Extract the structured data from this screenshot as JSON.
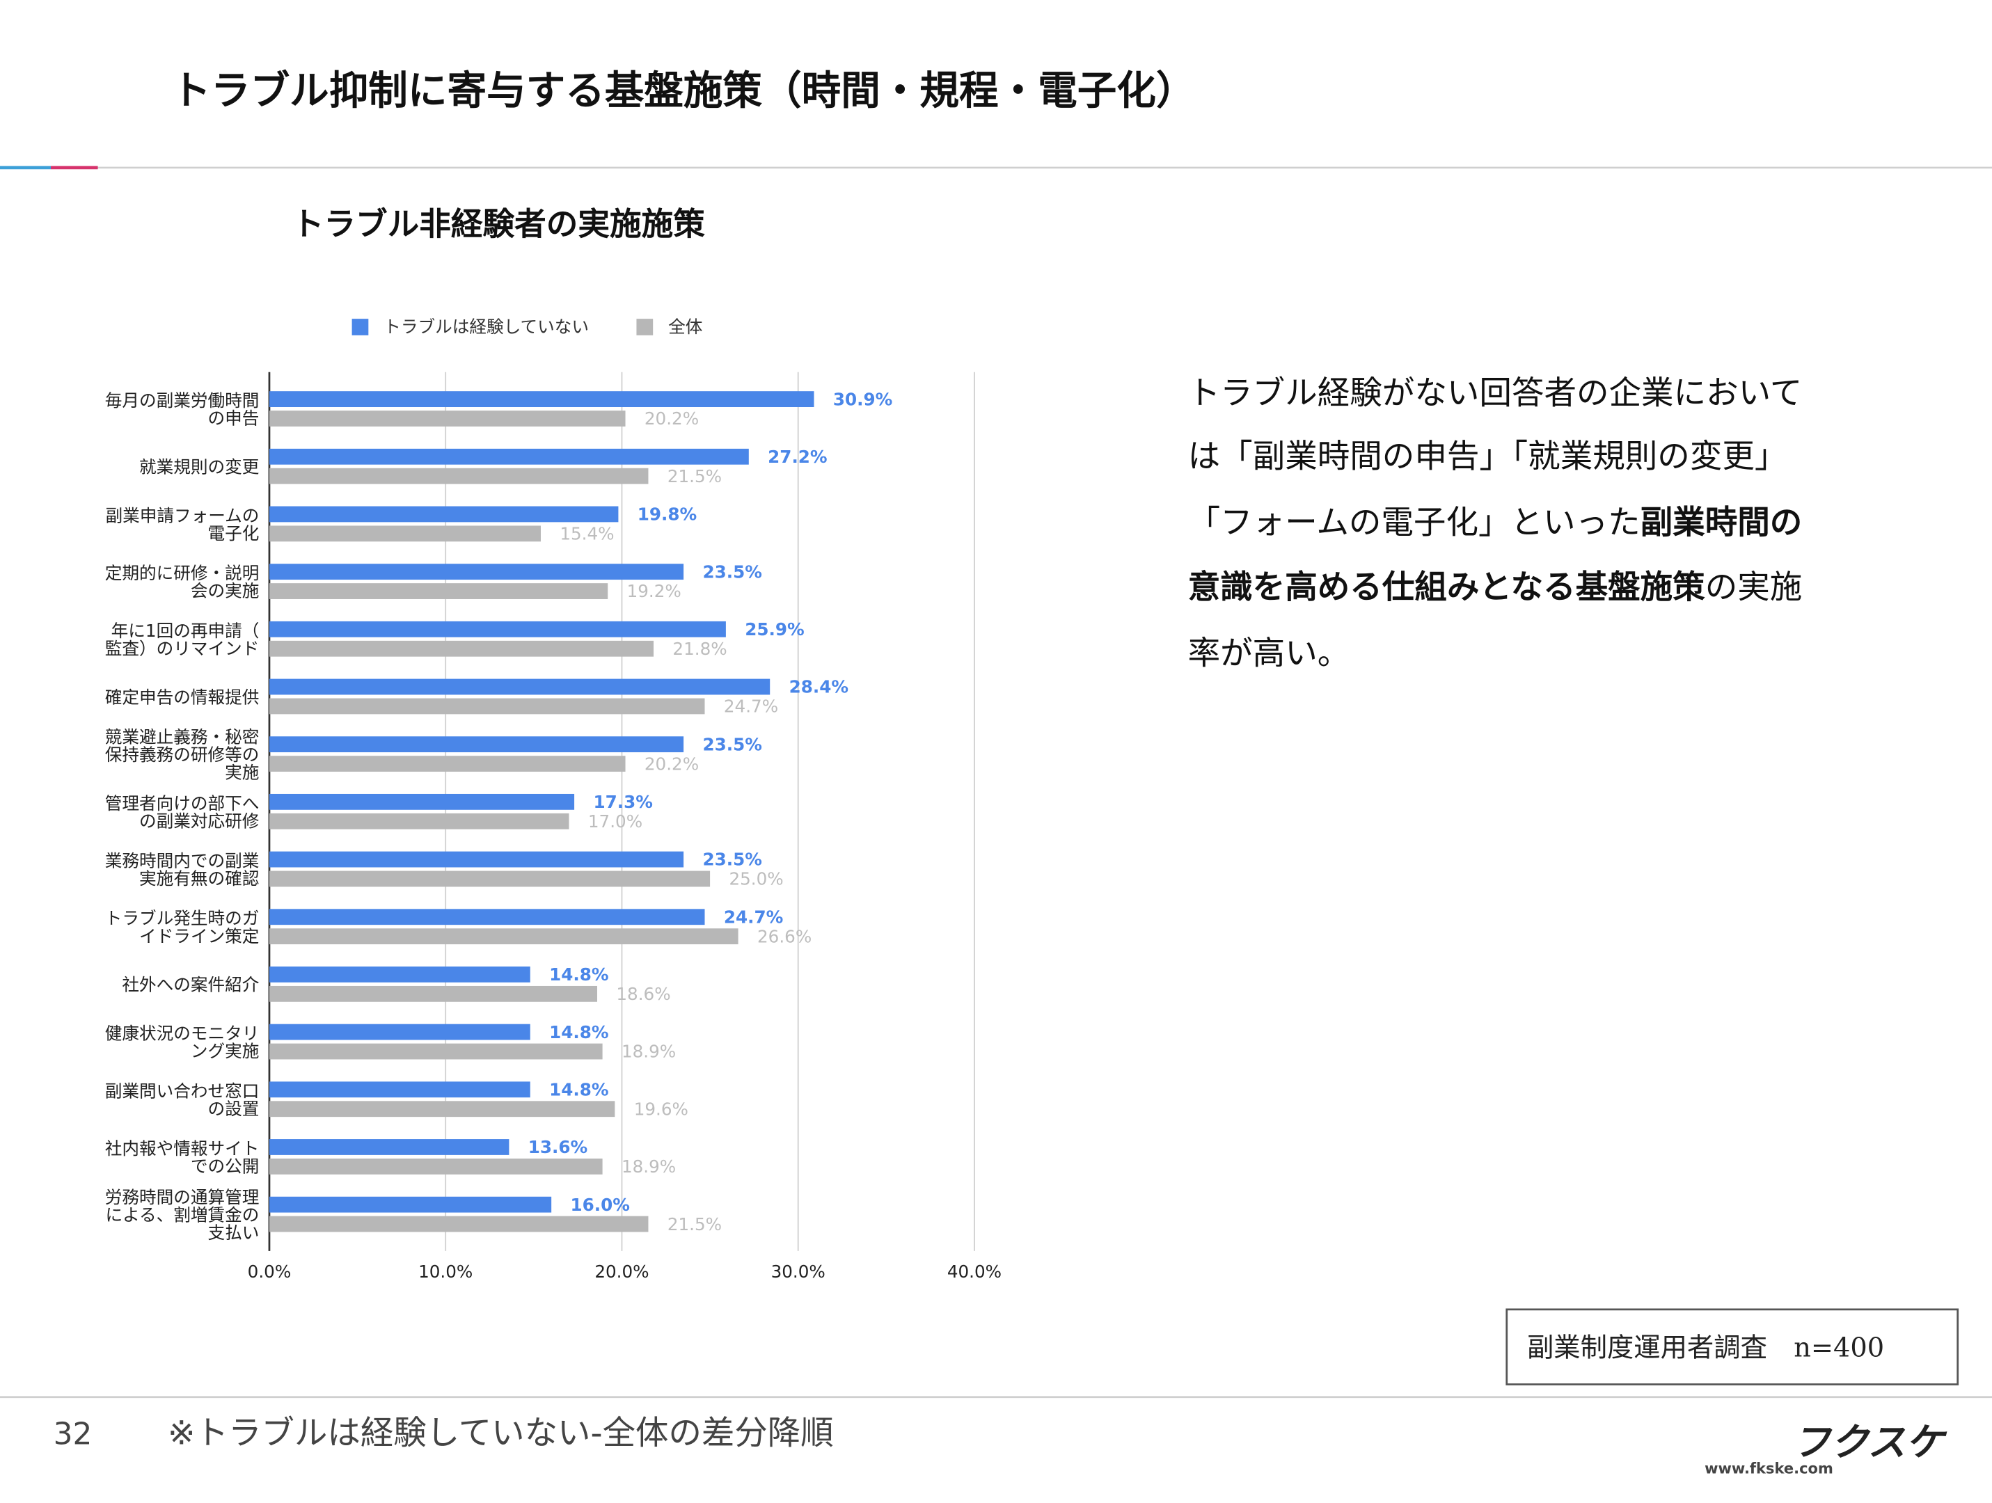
{
  "header": {
    "title": "トラブル抑制に寄与する基盤施策（時間・規程・電子化）"
  },
  "chart_data": {
    "type": "hbar",
    "title": "トラブル非経験者の実施施策",
    "categories": [
      [
        "毎月の副業労働時間",
        "の申告"
      ],
      [
        "就業規則の変更"
      ],
      [
        "副業申請フォームの",
        "電子化"
      ],
      [
        "定期的に研修・説明",
        "会の実施"
      ],
      [
        "年に1回の再申請（",
        "監査）のリマインド"
      ],
      [
        "確定申告の情報提供"
      ],
      [
        "競業避止義務・秘密",
        "保持義務の研修等の",
        "実施"
      ],
      [
        "管理者向けの部下へ",
        "の副業対応研修"
      ],
      [
        "業務時間内での副業",
        "実施有無の確認"
      ],
      [
        "トラブル発生時のガ",
        "イドライン策定"
      ],
      [
        "社外への案件紹介"
      ],
      [
        "健康状況のモニタリ",
        "ング実施"
      ],
      [
        "副業問い合わせ窓口",
        "の設置"
      ],
      [
        "社内報や情報サイト",
        "での公開"
      ],
      [
        "労務時間の通算管理",
        "による、割増賃金の",
        "支払い"
      ]
    ],
    "series": [
      {
        "name": "トラブルは経験していない",
        "color": "#4a86e8",
        "values": [
          30.9,
          27.2,
          19.8,
          23.5,
          25.9,
          28.4,
          23.5,
          17.3,
          23.5,
          24.7,
          14.8,
          14.8,
          14.8,
          13.6,
          16.0
        ],
        "value_labels": [
          "30.9%",
          "27.2%",
          "19.8%",
          "23.5%",
          "25.9%",
          "28.4%",
          "23.5%",
          "17.3%",
          "23.5%",
          "24.7%",
          "14.8%",
          "14.8%",
          "14.8%",
          "13.6%",
          "16.0%"
        ]
      },
      {
        "name": "全体",
        "color": "#b7b7b7",
        "values": [
          20.2,
          21.5,
          15.4,
          19.2,
          21.8,
          24.7,
          20.2,
          17.0,
          25.0,
          26.6,
          18.6,
          18.9,
          19.6,
          18.9,
          21.5
        ],
        "value_labels": [
          "20.2%",
          "21.5%",
          "15.4%",
          "19.2%",
          "21.8%",
          "24.7%",
          "20.2%",
          "17.0%",
          "25.0%",
          "26.6%",
          "18.6%",
          "18.9%",
          "19.6%",
          "18.9%",
          "21.5%"
        ]
      }
    ],
    "xlim": [
      0,
      40
    ],
    "xticks": [
      {
        "value": 0,
        "label": "0.0%"
      },
      {
        "value": 10,
        "label": "10.0%"
      },
      {
        "value": 20,
        "label": "20.0%"
      },
      {
        "value": 30,
        "label": "30.0%"
      },
      {
        "value": 40,
        "label": "40.0%"
      }
    ],
    "grid": true,
    "legend": "top"
  },
  "body": {
    "lines": [
      [
        {
          "text": "トラブル経験がない回答者の企業において",
          "bold": false
        }
      ],
      [
        {
          "text": "は「副業時間の申告」「就業規則の変更」",
          "bold": false
        }
      ],
      [
        {
          "text": "「フォームの電子化」といった",
          "bold": false
        },
        {
          "text": "副業時間の",
          "bold": true
        }
      ],
      [
        {
          "text": "意識を高める仕組みとなる基盤施策",
          "bold": true
        },
        {
          "text": "の実施",
          "bold": false
        }
      ],
      [
        {
          "text": "率が高い。",
          "bold": false
        }
      ]
    ]
  },
  "note": "副業制度運用者調査　n=400",
  "footer": {
    "page": "32",
    "footnote": "※トラブルは経験していない-全体の差分降順",
    "logo": "フクスケ",
    "url": "www.fkske.com"
  }
}
